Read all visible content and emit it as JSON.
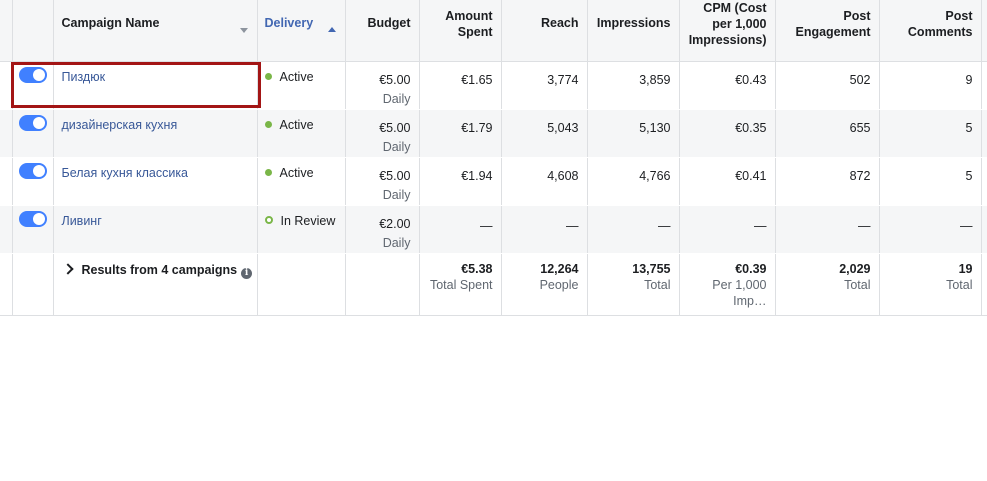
{
  "columns": {
    "campaign_name": "Campaign Name",
    "delivery": "Delivery",
    "budget": "Budget",
    "amount_spent": [
      "Amount",
      "Spent"
    ],
    "reach": "Reach",
    "impressions": "Impressions",
    "cpm": [
      "CPM (Cost",
      "per 1,000",
      "Impressions)"
    ],
    "post_engagement": [
      "Post",
      "Engagement"
    ],
    "post_comments": [
      "Post",
      "Comments"
    ]
  },
  "rows": [
    {
      "enabled": true,
      "name": "Пиздюк",
      "delivery": "Active",
      "delivery_status": "active",
      "budget": "€5.00",
      "budget_type": "Daily",
      "amount_spent": "€1.65",
      "reach": "3,774",
      "impressions": "3,859",
      "cpm": "€0.43",
      "post_engagement": "502",
      "post_comments": "9"
    },
    {
      "enabled": true,
      "name": "дизайнерская кухня",
      "delivery": "Active",
      "delivery_status": "active",
      "budget": "€5.00",
      "budget_type": "Daily",
      "amount_spent": "€1.79",
      "reach": "5,043",
      "impressions": "5,130",
      "cpm": "€0.35",
      "post_engagement": "655",
      "post_comments": "5"
    },
    {
      "enabled": true,
      "name": "Белая кухня классика",
      "delivery": "Active",
      "delivery_status": "active",
      "budget": "€5.00",
      "budget_type": "Daily",
      "amount_spent": "€1.94",
      "reach": "4,608",
      "impressions": "4,766",
      "cpm": "€0.41",
      "post_engagement": "872",
      "post_comments": "5"
    },
    {
      "enabled": true,
      "name": "Ливинг",
      "delivery": "In Review",
      "delivery_status": "review",
      "budget": "€2.00",
      "budget_type": "Daily",
      "amount_spent": "—",
      "reach": "—",
      "impressions": "—",
      "cpm": "—",
      "post_engagement": "—",
      "post_comments": "—"
    }
  ],
  "summary": {
    "label": "Results from 4 campaigns",
    "info_icon": "i",
    "amount_spent": "€5.38",
    "amount_spent_sub": "Total Spent",
    "reach": "12,264",
    "reach_sub": "People",
    "impressions": "13,755",
    "impressions_sub": "Total",
    "cpm": "€0.39",
    "cpm_sub": "Per 1,000 Imp…",
    "post_engagement": "2,029",
    "post_engagement_sub": "Total",
    "post_comments": "19",
    "post_comments_sub": "Total"
  },
  "colors": {
    "toggle_on": "#4080ff",
    "link": "#385898",
    "sorted_header": "#4267b2",
    "active_dot": "#7ab648",
    "highlight_box": "#a31515"
  },
  "icons": {
    "toggle": "toggle-switch-on",
    "sort_desc": "caret-down-icon",
    "sort_asc": "caret-up-icon",
    "expand": "chevron-right-icon",
    "info": "info-icon"
  }
}
